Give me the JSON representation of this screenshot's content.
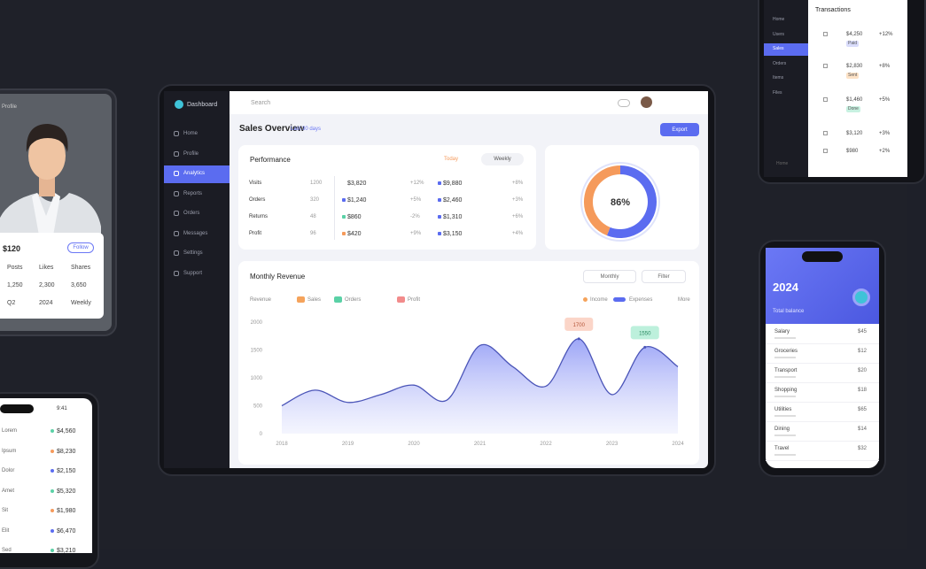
{
  "chart_data": [
    {
      "type": "area",
      "title": "Monthly Revenue",
      "categories": [
        "2018",
        null,
        "2019",
        null,
        "2020",
        null,
        "2021",
        null,
        "2022",
        null,
        "2023",
        null,
        "2024"
      ],
      "series": [
        {
          "name": "Revenue",
          "color": "#5b6cf0",
          "values": [
            500,
            780,
            560,
            700,
            870,
            600,
            1580,
            1200,
            850,
            1700,
            700,
            1550,
            1200
          ],
          "value_labels": [
            null,
            null,
            null,
            null,
            null,
            null,
            null,
            null,
            null,
            "1700",
            null,
            "1550",
            null
          ]
        }
      ],
      "ylim": [
        0,
        2000
      ],
      "yticks": [
        0,
        500,
        1000,
        1500,
        2000
      ],
      "grid": false
    },
    {
      "type": "donut",
      "center_label": "86%",
      "values": [
        56,
        44
      ],
      "colors": [
        "#5b6cf0",
        "#f59a5b"
      ]
    }
  ],
  "main": {
    "brand": "Dashboard",
    "nav": [
      "Home",
      "Profile",
      "Analytics",
      "Reports",
      "Orders",
      "Messages",
      "Settings",
      "Support"
    ],
    "active": 2,
    "search": "Search",
    "page_title": "Sales Overview",
    "page_subtitle": "Last 30 days",
    "button": "Export",
    "stats": {
      "title": "Performance",
      "badges": [
        "Today",
        "Weekly"
      ],
      "rows": [
        [
          "Visits",
          "1200",
          "$3,820",
          "+12%",
          "$9,880",
          "+8%"
        ],
        [
          "Orders",
          "320",
          "$1,240",
          "+5%",
          "$2,460",
          "+3%"
        ],
        [
          "Returns",
          "48",
          "$860",
          "-2%",
          "$1,310",
          "+6%"
        ],
        [
          "Profit",
          "96",
          "$420",
          "+9%",
          "$3,150",
          "+4%"
        ]
      ]
    },
    "chart_buttons": [
      "Monthly",
      "Filter"
    ],
    "filters": {
      "label": "Revenue",
      "items": [
        {
          "label": "Sales",
          "color": "#f5a35b"
        },
        {
          "label": "Orders",
          "color": "#5ad1a6"
        },
        {
          "label": "Profit",
          "color": "#f28b8b"
        }
      ]
    },
    "legend": [
      {
        "label": "Income",
        "color": "#f5a35b"
      },
      {
        "label": "Expenses",
        "color": "#5b6cf0"
      }
    ],
    "legend_more": "More"
  },
  "left_tablet": {
    "header": "Profile",
    "title": "$120",
    "button": "Follow",
    "rows": [
      [
        "Posts",
        "Likes",
        "Shares"
      ],
      [
        "1,250",
        "2,300",
        "3,650"
      ],
      [
        "Q2",
        "2024",
        "Weekly"
      ]
    ]
  },
  "left_phone": {
    "time": "9:41",
    "rows": [
      [
        "Lorem",
        "$4,560"
      ],
      [
        "Ipsum",
        "$8,230"
      ],
      [
        "Dolor",
        "$2,150"
      ],
      [
        "Amet",
        "$5,320"
      ],
      [
        "Sit",
        "$1,980"
      ],
      [
        "Elit",
        "$6,470"
      ],
      [
        "Sed",
        "$3,210"
      ]
    ]
  },
  "right_tablet": {
    "header": "Transactions",
    "nav": [
      "Home",
      "Users",
      "Sales",
      "Orders",
      "Items",
      "Files"
    ],
    "active": 2,
    "rows": [
      [
        "$4,250",
        "Paid",
        "+12%"
      ],
      [
        "$2,830",
        "Sent",
        "+8%"
      ],
      [
        "$1,460",
        "Done",
        "+5%"
      ],
      [
        "$3,120",
        null,
        "+3%"
      ],
      [
        "$980",
        null,
        "+2%"
      ]
    ]
  },
  "right_phone": {
    "title": "2024",
    "subtitle": "Total balance",
    "rows": [
      [
        "Salary",
        "$45"
      ],
      [
        "Groceries",
        "$12"
      ],
      [
        "Transport",
        "$20"
      ],
      [
        "Shopping",
        "$18"
      ],
      [
        "Utilities",
        "$65"
      ],
      [
        "Dining",
        "$14"
      ],
      [
        "Travel",
        "$32"
      ]
    ]
  }
}
